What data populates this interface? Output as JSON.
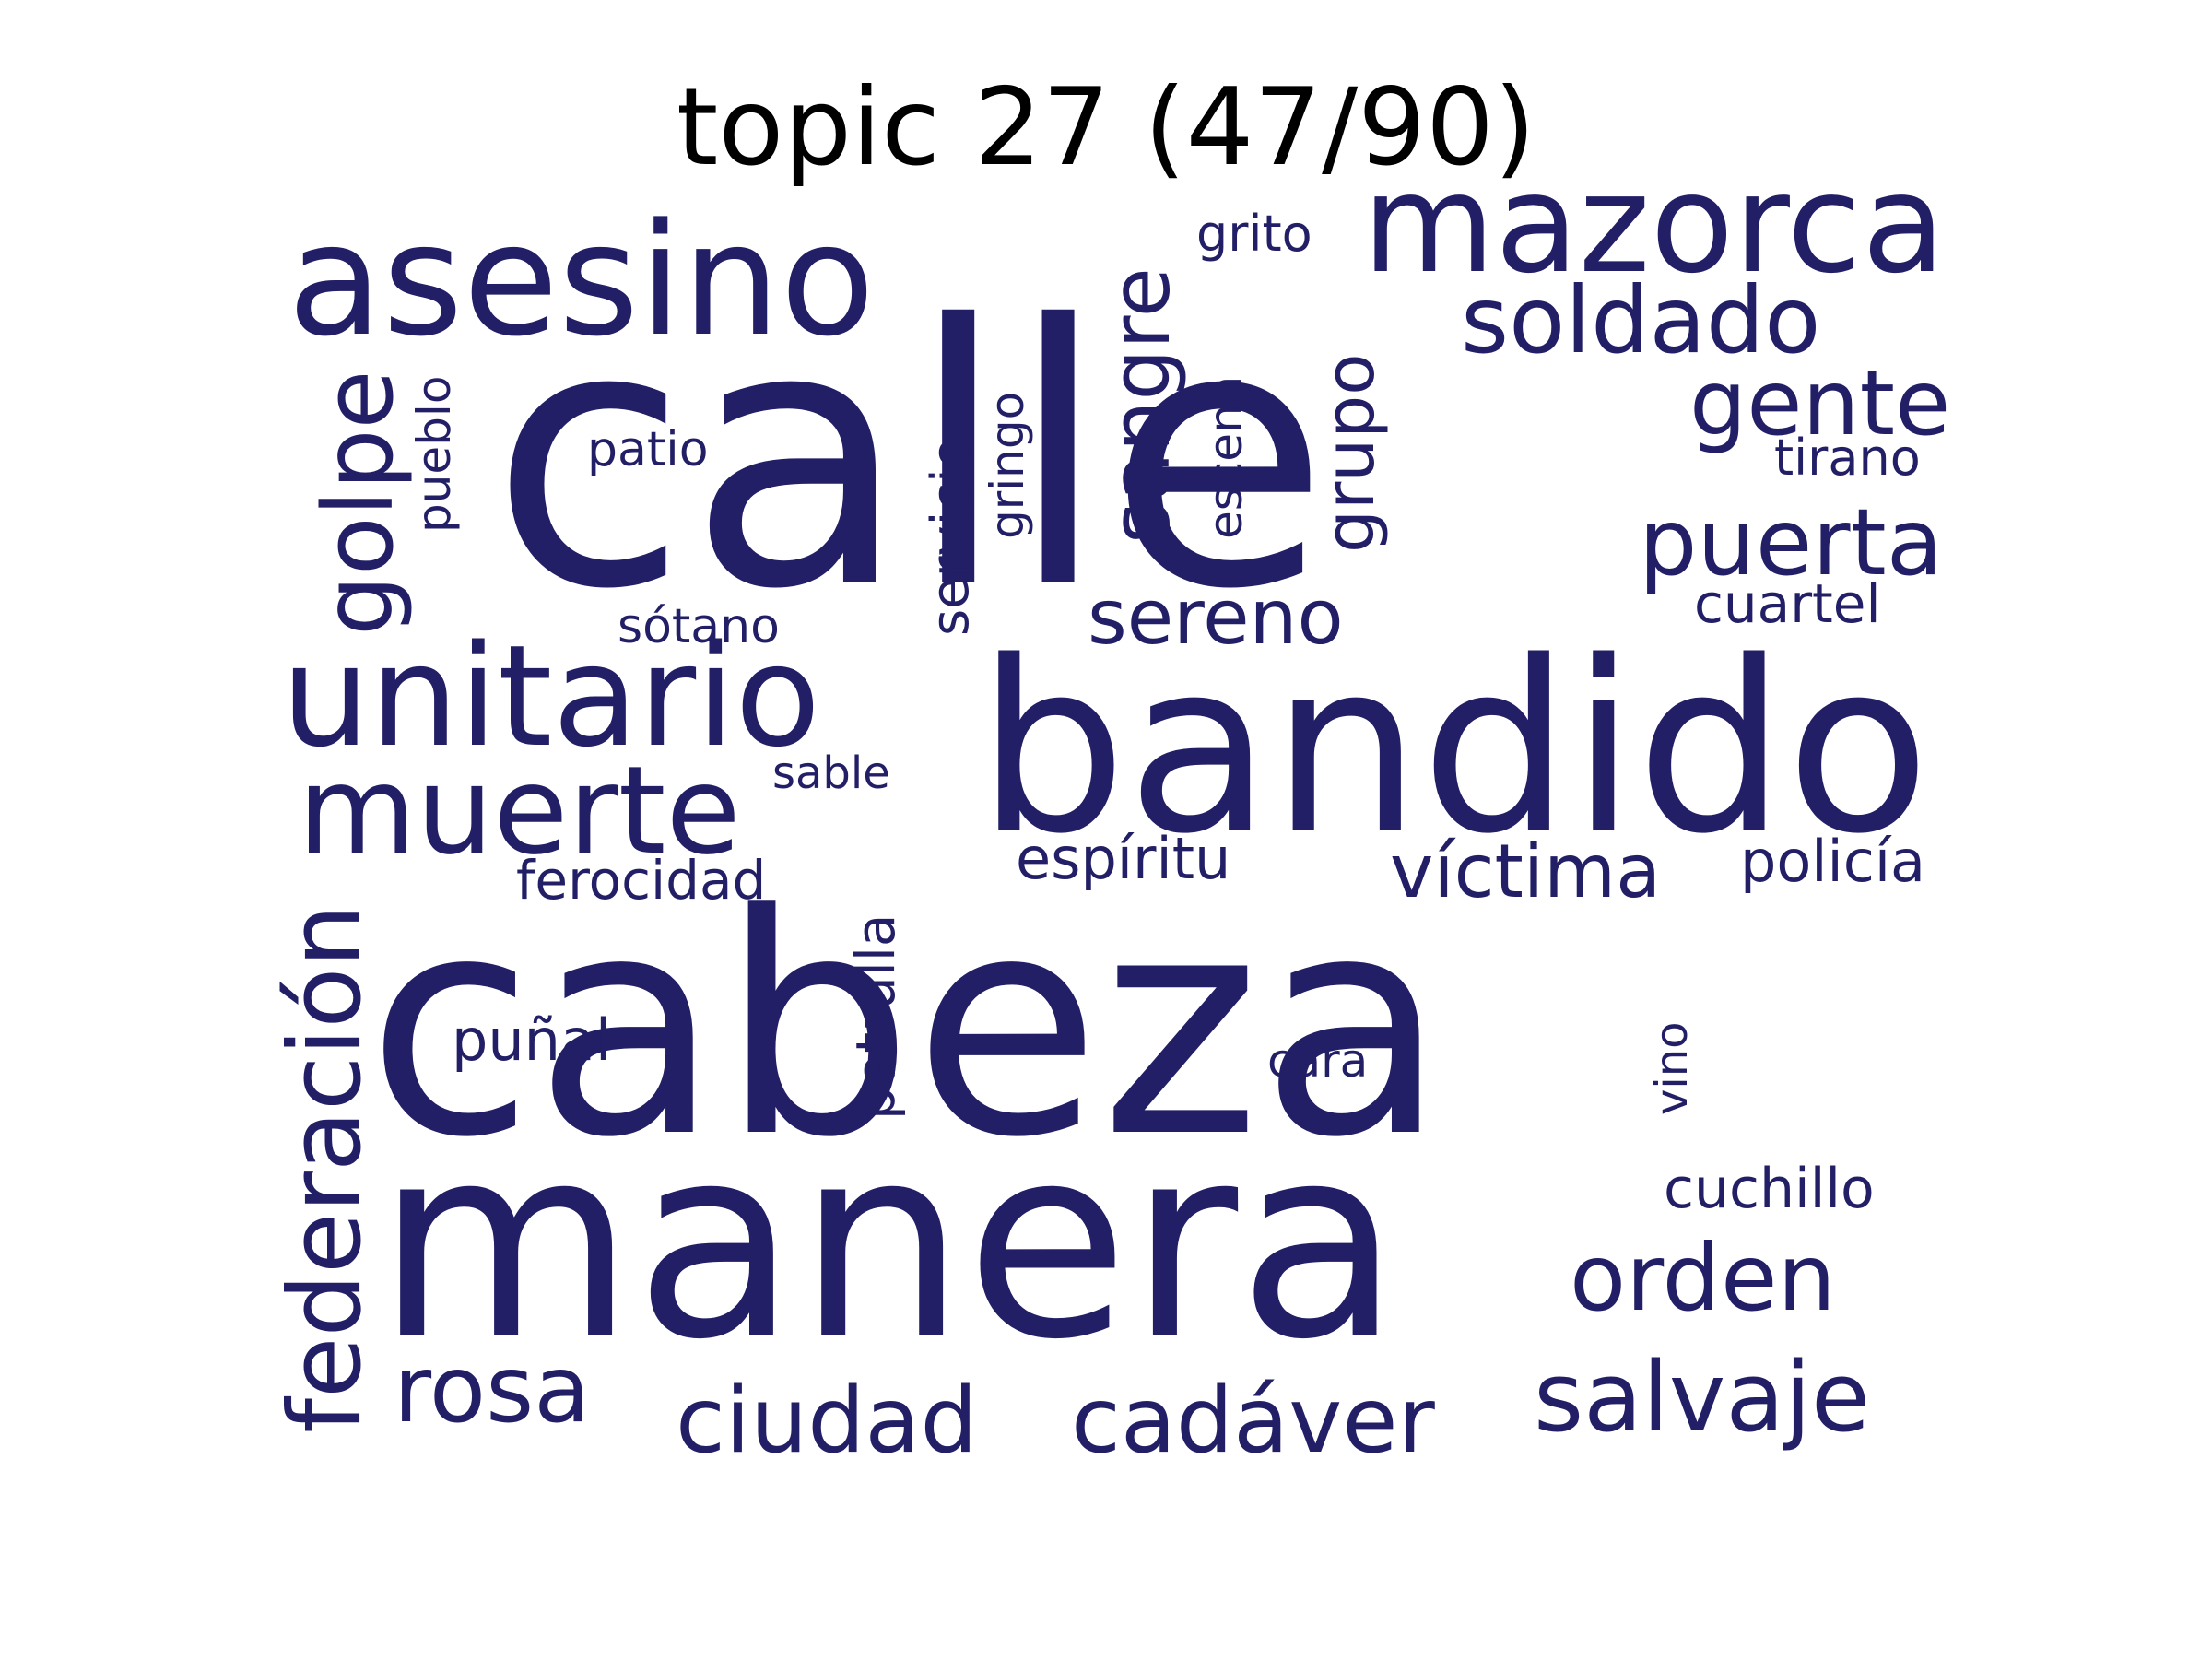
{
  "title": "topic 27 (47/90)",
  "word_color": "#221f66",
  "title_color": "#000000",
  "words": [
    {
      "text": "calle",
      "vertical": false
    },
    {
      "text": "cabeza",
      "vertical": false
    },
    {
      "text": "manera",
      "vertical": false
    },
    {
      "text": "bandido",
      "vertical": false
    },
    {
      "text": "asesino",
      "vertical": false
    },
    {
      "text": "mazorca",
      "vertical": false
    },
    {
      "text": "unitario",
      "vertical": false
    },
    {
      "text": "muerte",
      "vertical": false
    },
    {
      "text": "federación",
      "vertical": true
    },
    {
      "text": "salvaje",
      "vertical": false
    },
    {
      "text": "cadáver",
      "vertical": false
    },
    {
      "text": "ciudad",
      "vertical": false
    },
    {
      "text": "golpe",
      "vertical": true
    },
    {
      "text": "soldado",
      "vertical": false
    },
    {
      "text": "orden",
      "vertical": false
    },
    {
      "text": "puerta",
      "vertical": false
    },
    {
      "text": "gente",
      "vertical": false
    },
    {
      "text": "rosa",
      "vertical": false
    },
    {
      "text": "sangre",
      "vertical": true
    },
    {
      "text": "víctima",
      "vertical": false
    },
    {
      "text": "sereno",
      "vertical": false
    },
    {
      "text": "grupo",
      "vertical": true
    },
    {
      "text": "patrulla",
      "vertical": true
    },
    {
      "text": "servicio",
      "vertical": true
    },
    {
      "text": "policía",
      "vertical": false
    },
    {
      "text": "espíritu",
      "vertical": false
    },
    {
      "text": "ferocidad",
      "vertical": false
    },
    {
      "text": "puñal",
      "vertical": false
    },
    {
      "text": "cuchillo",
      "vertical": false
    },
    {
      "text": "cuartel",
      "vertical": false
    },
    {
      "text": "tirano",
      "vertical": false
    },
    {
      "text": "escena",
      "vertical": true
    },
    {
      "text": "gringo",
      "vertical": true
    },
    {
      "text": "pueblo",
      "vertical": true
    },
    {
      "text": "grito",
      "vertical": false
    },
    {
      "text": "patio",
      "vertical": false
    },
    {
      "text": "sótano",
      "vertical": false
    },
    {
      "text": "sable",
      "vertical": false
    },
    {
      "text": "cara",
      "vertical": false
    },
    {
      "text": "vino",
      "vertical": true
    }
  ]
}
